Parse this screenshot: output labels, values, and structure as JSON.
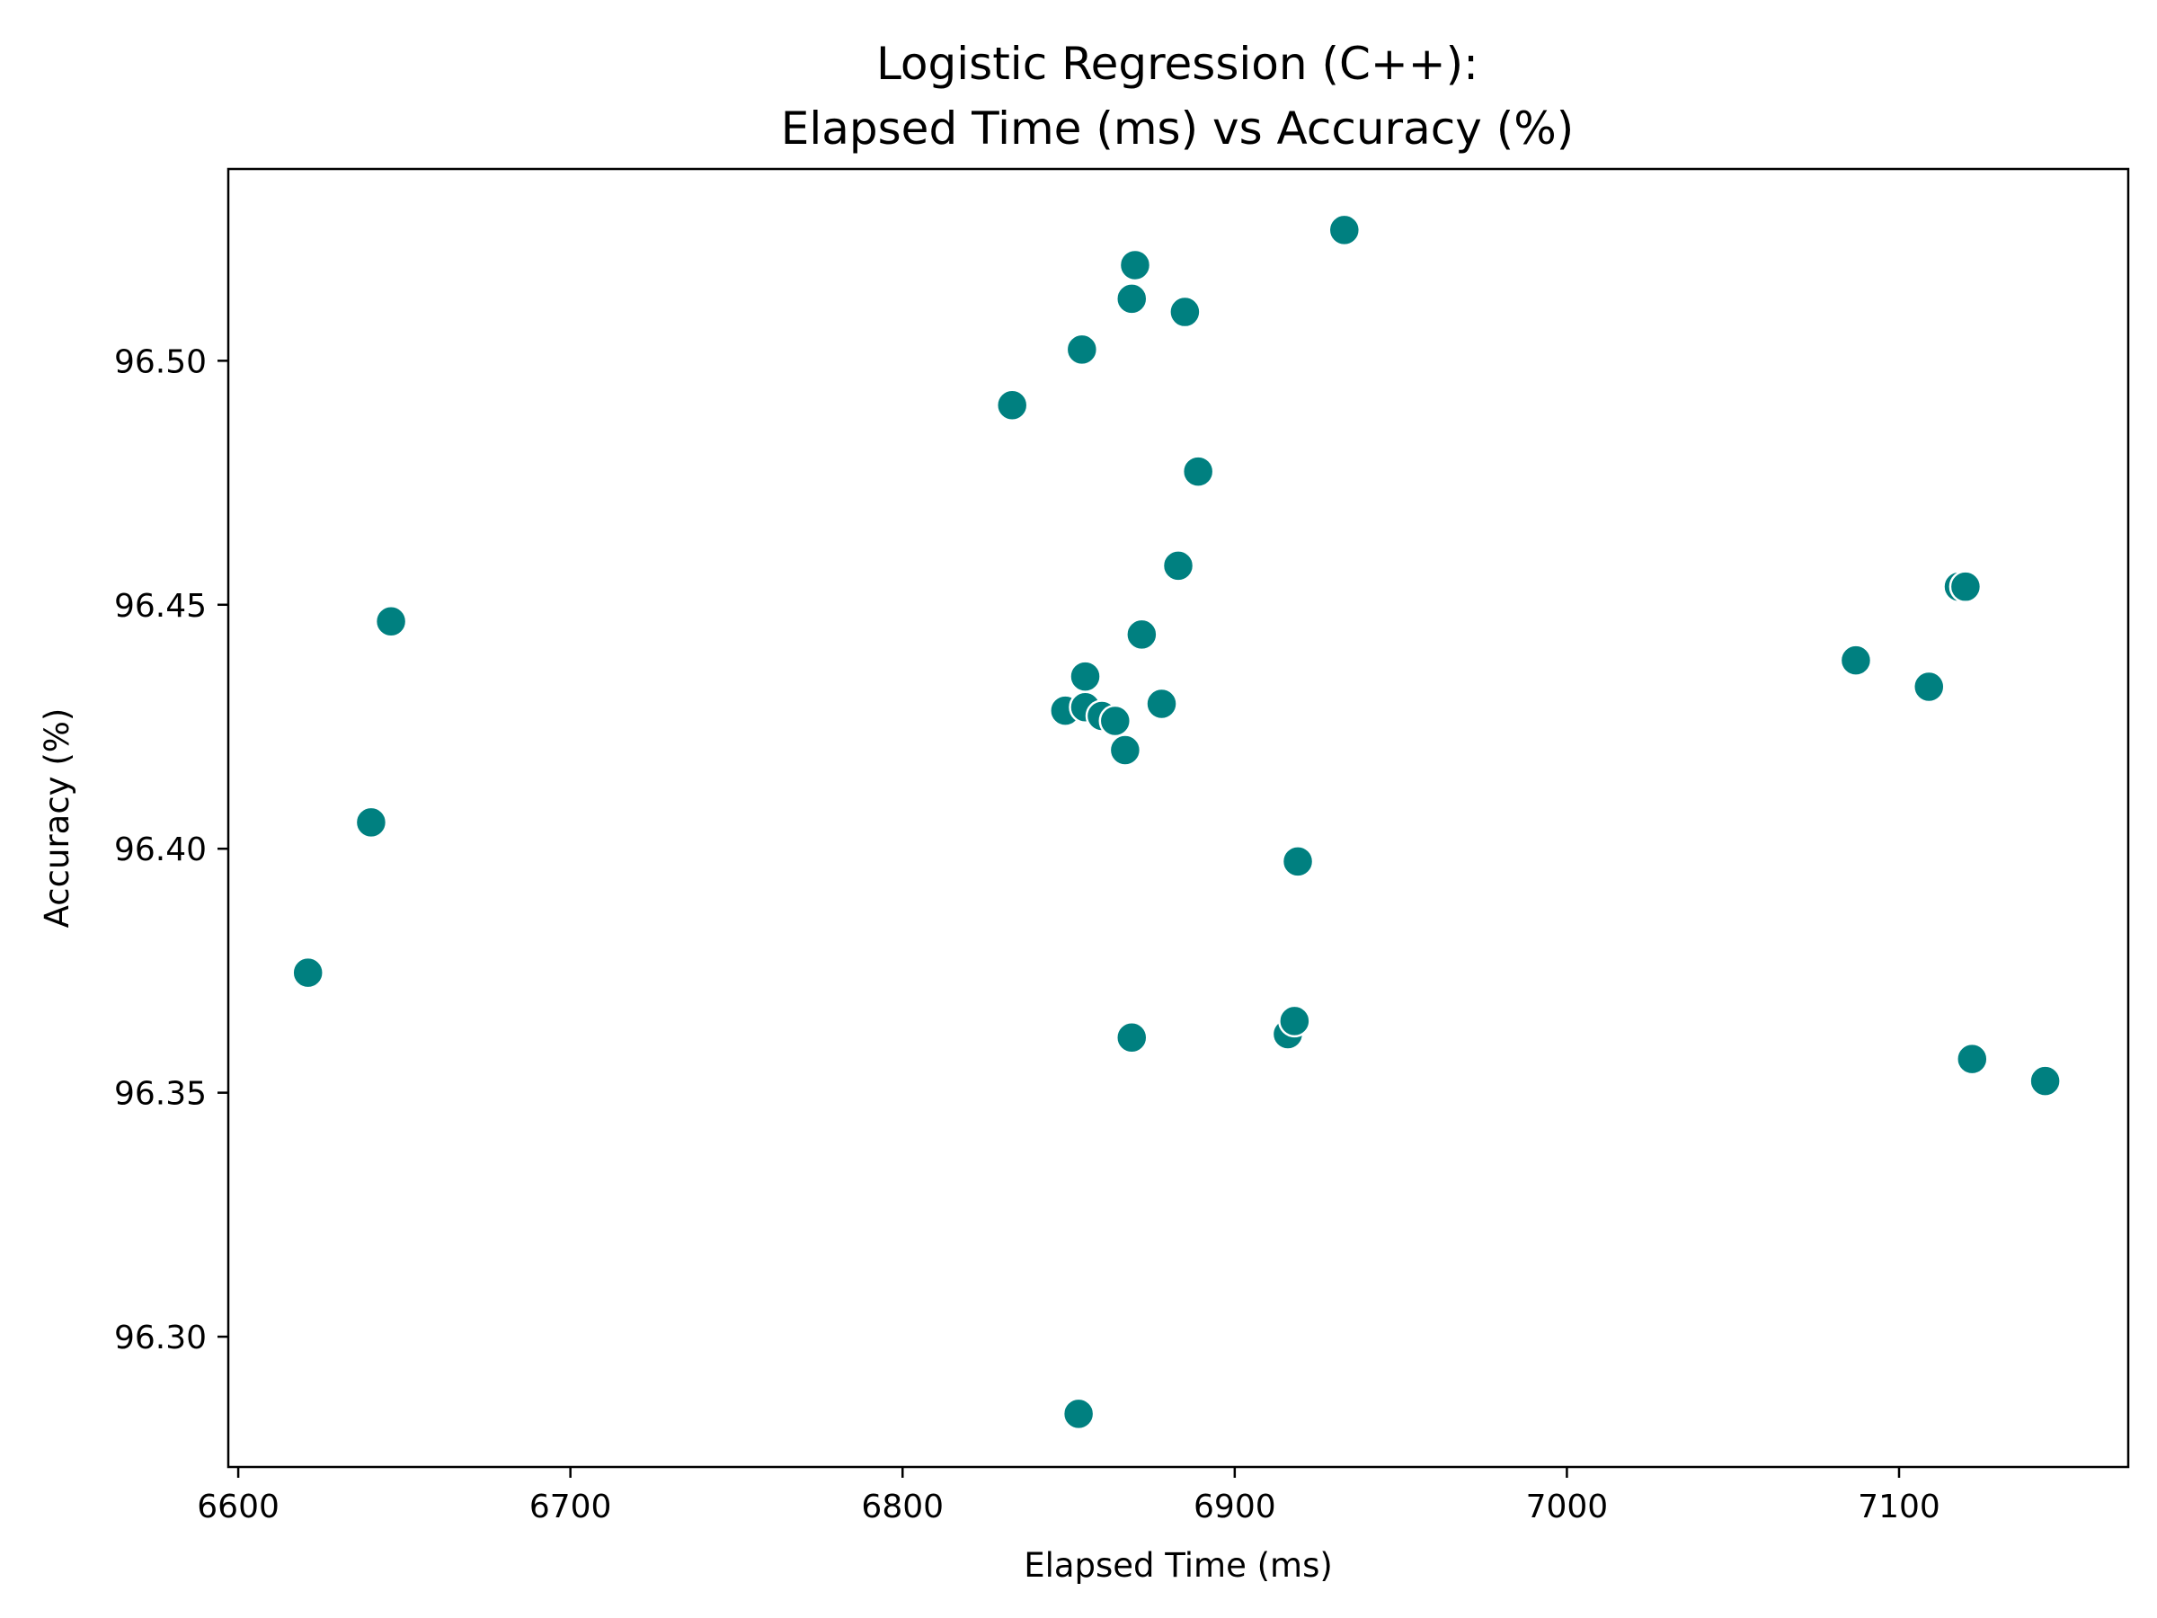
{
  "chart_data": {
    "type": "scatter",
    "title_lines": [
      "Logistic Regression (C++):",
      "Elapsed Time (ms) vs Accuracy (%)"
    ],
    "xlabel": "Elapsed Time (ms)",
    "ylabel": "Accuracy (%)",
    "xlim": [
      6597,
      7169
    ],
    "ylim": [
      96.2733,
      96.5393
    ],
    "x_ticks": [
      6600,
      6700,
      6800,
      6900,
      7000,
      7100
    ],
    "x_tick_labels": [
      "6600",
      "6700",
      "6800",
      "6900",
      "7000",
      "7100"
    ],
    "y_ticks": [
      96.3,
      96.35,
      96.4,
      96.45,
      96.5
    ],
    "y_tick_labels": [
      "96.30",
      "96.35",
      "96.40",
      "96.45",
      "96.50"
    ],
    "grid": false,
    "marker_color": "#008080",
    "marker_edge_color": "#ffffff",
    "points": [
      {
        "x": 6621,
        "y": 96.3746
      },
      {
        "x": 6640,
        "y": 96.4054
      },
      {
        "x": 6646,
        "y": 96.4466
      },
      {
        "x": 6833,
        "y": 96.4909
      },
      {
        "x": 6849,
        "y": 96.4283
      },
      {
        "x": 6853,
        "y": 96.2842
      },
      {
        "x": 6854,
        "y": 96.5023
      },
      {
        "x": 6855,
        "y": 96.4353
      },
      {
        "x": 6855,
        "y": 96.429
      },
      {
        "x": 6860,
        "y": 96.4272
      },
      {
        "x": 6864,
        "y": 96.4262
      },
      {
        "x": 6867,
        "y": 96.4202
      },
      {
        "x": 6869,
        "y": 96.5127
      },
      {
        "x": 6869,
        "y": 96.3613
      },
      {
        "x": 6870,
        "y": 96.5196
      },
      {
        "x": 6872,
        "y": 96.4439
      },
      {
        "x": 6878,
        "y": 96.4297
      },
      {
        "x": 6883,
        "y": 96.458
      },
      {
        "x": 6885,
        "y": 96.51
      },
      {
        "x": 6889,
        "y": 96.4773
      },
      {
        "x": 6916,
        "y": 96.362
      },
      {
        "x": 6918,
        "y": 96.3647
      },
      {
        "x": 6919,
        "y": 96.3974
      },
      {
        "x": 6933,
        "y": 96.5268
      },
      {
        "x": 7087,
        "y": 96.4386
      },
      {
        "x": 7109,
        "y": 96.4332
      },
      {
        "x": 7118,
        "y": 96.4537
      },
      {
        "x": 7120,
        "y": 96.4537
      },
      {
        "x": 7122,
        "y": 96.3569
      },
      {
        "x": 7144,
        "y": 96.3524
      }
    ]
  }
}
